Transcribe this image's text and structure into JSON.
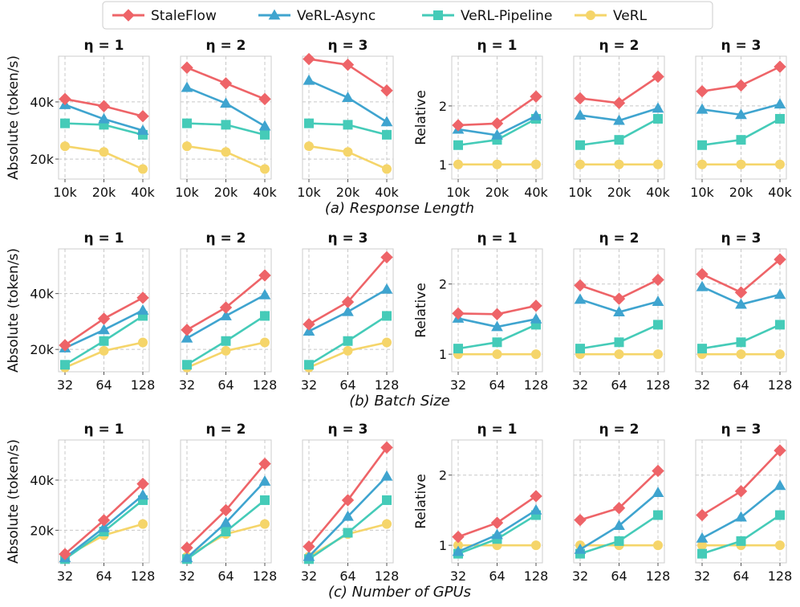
{
  "legend": {
    "entries": [
      {
        "name": "StaleFlow",
        "color": "#ee6468",
        "marker": "diamond"
      },
      {
        "name": "VeRL-Async",
        "color": "#3fa4cf",
        "marker": "triangle"
      },
      {
        "name": "VeRL-Pipeline",
        "color": "#45cbb8",
        "marker": "square"
      },
      {
        "name": "VeRL",
        "color": "#f5d56a",
        "marker": "circle"
      }
    ]
  },
  "chart_data": [
    {
      "type": "line",
      "caption": "(a) Response Length",
      "categories": [
        "10k",
        "20k",
        "40k"
      ],
      "absolute": {
        "ylabel": "Absolute (token/s)",
        "yticks": [
          {
            "v": 20000,
            "label": "20k"
          },
          {
            "v": 40000,
            "label": "40k"
          }
        ],
        "ylim": [
          13000,
          56000
        ],
        "panels": [
          {
            "title": "η = 1",
            "series": [
              {
                "name": "StaleFlow",
                "values": [
                  41000,
                  38500,
                  35000
                ]
              },
              {
                "name": "VeRL-Async",
                "values": [
                  39000,
                  34000,
                  30000
                ]
              },
              {
                "name": "VeRL-Pipeline",
                "values": [
                  32500,
                  32000,
                  28500
                ]
              },
              {
                "name": "VeRL",
                "values": [
                  24500,
                  22500,
                  16500
                ]
              }
            ]
          },
          {
            "title": "η = 2",
            "series": [
              {
                "name": "StaleFlow",
                "values": [
                  52000,
                  46500,
                  41000
                ]
              },
              {
                "name": "VeRL-Async",
                "values": [
                  45000,
                  39500,
                  31500
                ]
              },
              {
                "name": "VeRL-Pipeline",
                "values": [
                  32500,
                  32000,
                  28500
                ]
              },
              {
                "name": "VeRL",
                "values": [
                  24500,
                  22500,
                  16500
                ]
              }
            ]
          },
          {
            "title": "η = 3",
            "series": [
              {
                "name": "StaleFlow",
                "values": [
                  55000,
                  53000,
                  44000
                ]
              },
              {
                "name": "VeRL-Async",
                "values": [
                  47500,
                  41500,
                  33000
                ]
              },
              {
                "name": "VeRL-Pipeline",
                "values": [
                  32500,
                  32000,
                  28500
                ]
              },
              {
                "name": "VeRL",
                "values": [
                  24500,
                  22500,
                  16500
                ]
              }
            ]
          }
        ]
      },
      "relative": {
        "ylabel": "Relative",
        "yticks": [
          {
            "v": 1,
            "label": "1"
          },
          {
            "v": 2,
            "label": "2"
          }
        ],
        "ylim": [
          0.75,
          2.85
        ],
        "panels": [
          {
            "title": "η = 1",
            "series": [
              {
                "name": "StaleFlow",
                "values": [
                  1.67,
                  1.7,
                  2.16
                ]
              },
              {
                "name": "VeRL-Async",
                "values": [
                  1.6,
                  1.5,
                  1.83
                ]
              },
              {
                "name": "VeRL-Pipeline",
                "values": [
                  1.33,
                  1.42,
                  1.78
                ]
              },
              {
                "name": "VeRL",
                "values": [
                  1.0,
                  1.0,
                  1.0
                ]
              }
            ]
          },
          {
            "title": "η = 2",
            "series": [
              {
                "name": "StaleFlow",
                "values": [
                  2.13,
                  2.05,
                  2.5
                ]
              },
              {
                "name": "VeRL-Async",
                "values": [
                  1.84,
                  1.75,
                  1.96
                ]
              },
              {
                "name": "VeRL-Pipeline",
                "values": [
                  1.33,
                  1.42,
                  1.78
                ]
              },
              {
                "name": "VeRL",
                "values": [
                  1.0,
                  1.0,
                  1.0
                ]
              }
            ]
          },
          {
            "title": "η = 3",
            "series": [
              {
                "name": "StaleFlow",
                "values": [
                  2.25,
                  2.35,
                  2.67
                ]
              },
              {
                "name": "VeRL-Async",
                "values": [
                  1.94,
                  1.85,
                  2.03
                ]
              },
              {
                "name": "VeRL-Pipeline",
                "values": [
                  1.33,
                  1.42,
                  1.78
                ]
              },
              {
                "name": "VeRL",
                "values": [
                  1.0,
                  1.0,
                  1.0
                ]
              }
            ]
          }
        ]
      }
    },
    {
      "type": "line",
      "caption": "(b) Batch Size",
      "categories": [
        "32",
        "64",
        "128"
      ],
      "absolute": {
        "ylabel": "Absolute (token/s)",
        "yticks": [
          {
            "v": 20000,
            "label": "20k"
          },
          {
            "v": 40000,
            "label": "40k"
          }
        ],
        "ylim": [
          12000,
          56000
        ],
        "panels": [
          {
            "title": "η = 1",
            "series": [
              {
                "name": "StaleFlow",
                "values": [
                  21500,
                  31000,
                  38500
                ]
              },
              {
                "name": "VeRL-Async",
                "values": [
                  20500,
                  27000,
                  34000
                ]
              },
              {
                "name": "VeRL-Pipeline",
                "values": [
                  14500,
                  23000,
                  32000
                ]
              },
              {
                "name": "VeRL",
                "values": [
                  13500,
                  19500,
                  22500
                ]
              }
            ]
          },
          {
            "title": "η = 2",
            "series": [
              {
                "name": "StaleFlow",
                "values": [
                  27000,
                  35000,
                  46500
                ]
              },
              {
                "name": "VeRL-Async",
                "values": [
                  24000,
                  32000,
                  39500
                ]
              },
              {
                "name": "VeRL-Pipeline",
                "values": [
                  14500,
                  23000,
                  32000
                ]
              },
              {
                "name": "VeRL",
                "values": [
                  13500,
                  19500,
                  22500
                ]
              }
            ]
          },
          {
            "title": "η = 3",
            "series": [
              {
                "name": "StaleFlow",
                "values": [
                  29000,
                  37000,
                  53000
                ]
              },
              {
                "name": "VeRL-Async",
                "values": [
                  26500,
                  33500,
                  41500
                ]
              },
              {
                "name": "VeRL-Pipeline",
                "values": [
                  14500,
                  23000,
                  32000
                ]
              },
              {
                "name": "VeRL",
                "values": [
                  13500,
                  19500,
                  22500
                ]
              }
            ]
          }
        ]
      },
      "relative": {
        "ylabel": "Relative",
        "yticks": [
          {
            "v": 1,
            "label": "1"
          },
          {
            "v": 2,
            "label": "2"
          }
        ],
        "ylim": [
          0.75,
          2.5
        ],
        "panels": [
          {
            "title": "η = 1",
            "series": [
              {
                "name": "StaleFlow",
                "values": [
                  1.58,
                  1.57,
                  1.69
                ]
              },
              {
                "name": "VeRL-Async",
                "values": [
                  1.51,
                  1.39,
                  1.5
                ]
              },
              {
                "name": "VeRL-Pipeline",
                "values": [
                  1.08,
                  1.17,
                  1.42
                ]
              },
              {
                "name": "VeRL",
                "values": [
                  1.0,
                  1.0,
                  1.0
                ]
              }
            ]
          },
          {
            "title": "η = 2",
            "series": [
              {
                "name": "StaleFlow",
                "values": [
                  1.98,
                  1.79,
                  2.06
                ]
              },
              {
                "name": "VeRL-Async",
                "values": [
                  1.78,
                  1.6,
                  1.75
                ]
              },
              {
                "name": "VeRL-Pipeline",
                "values": [
                  1.08,
                  1.17,
                  1.42
                ]
              },
              {
                "name": "VeRL",
                "values": [
                  1.0,
                  1.0,
                  1.0
                ]
              }
            ]
          },
          {
            "title": "η = 3",
            "series": [
              {
                "name": "StaleFlow",
                "values": [
                  2.14,
                  1.88,
                  2.35
                ]
              },
              {
                "name": "VeRL-Async",
                "values": [
                  1.96,
                  1.71,
                  1.85
                ]
              },
              {
                "name": "VeRL-Pipeline",
                "values": [
                  1.08,
                  1.17,
                  1.42
                ]
              },
              {
                "name": "VeRL",
                "values": [
                  1.0,
                  1.0,
                  1.0
                ]
              }
            ]
          }
        ]
      }
    },
    {
      "type": "line",
      "caption": "(c) Number of GPUs",
      "categories": [
        "32",
        "64",
        "128"
      ],
      "absolute": {
        "ylabel": "Absolute (token/s)",
        "yticks": [
          {
            "v": 20000,
            "label": "20k"
          },
          {
            "v": 40000,
            "label": "40k"
          }
        ],
        "ylim": [
          7000,
          56000
        ],
        "panels": [
          {
            "title": "η = 1",
            "series": [
              {
                "name": "StaleFlow",
                "values": [
                  10500,
                  24000,
                  38500
                ]
              },
              {
                "name": "VeRL-Async",
                "values": [
                  9000,
                  21000,
                  34000
                ]
              },
              {
                "name": "VeRL-Pipeline",
                "values": [
                  8500,
                  19500,
                  32000
                ]
              },
              {
                "name": "VeRL",
                "values": [
                  9500,
                  18000,
                  22500
                ]
              }
            ]
          },
          {
            "title": "η = 2",
            "series": [
              {
                "name": "StaleFlow",
                "values": [
                  13000,
                  28000,
                  46500
                ]
              },
              {
                "name": "VeRL-Async",
                "values": [
                  9000,
                  23000,
                  39500
                ]
              },
              {
                "name": "VeRL-Pipeline",
                "values": [
                  8500,
                  19500,
                  32000
                ]
              },
              {
                "name": "VeRL",
                "values": [
                  9500,
                  18500,
                  22500
                ]
              }
            ]
          },
          {
            "title": "η = 3",
            "series": [
              {
                "name": "StaleFlow",
                "values": [
                  13500,
                  32000,
                  53000
                ]
              },
              {
                "name": "VeRL-Async",
                "values": [
                  9500,
                  25500,
                  41500
                ]
              },
              {
                "name": "VeRL-Pipeline",
                "values": [
                  8500,
                  19000,
                  32000
                ]
              },
              {
                "name": "VeRL",
                "values": [
                  9500,
                  18500,
                  22500
                ]
              }
            ]
          }
        ]
      },
      "relative": {
        "ylabel": "Relative",
        "yticks": [
          {
            "v": 1,
            "label": "1"
          },
          {
            "v": 2,
            "label": "2"
          }
        ],
        "ylim": [
          0.75,
          2.5
        ],
        "panels": [
          {
            "title": "η = 1",
            "series": [
              {
                "name": "StaleFlow",
                "values": [
                  1.12,
                  1.32,
                  1.7
                ]
              },
              {
                "name": "VeRL-Async",
                "values": [
                  0.91,
                  1.15,
                  1.5
                ]
              },
              {
                "name": "VeRL-Pipeline",
                "values": [
                  0.88,
                  1.09,
                  1.43
                ]
              },
              {
                "name": "VeRL",
                "values": [
                  1.0,
                  1.0,
                  1.0
                ]
              }
            ]
          },
          {
            "title": "η = 2",
            "series": [
              {
                "name": "StaleFlow",
                "values": [
                  1.36,
                  1.53,
                  2.06
                ]
              },
              {
                "name": "VeRL-Async",
                "values": [
                  0.94,
                  1.28,
                  1.75
                ]
              },
              {
                "name": "VeRL-Pipeline",
                "values": [
                  0.88,
                  1.06,
                  1.43
                ]
              },
              {
                "name": "VeRL",
                "values": [
                  1.0,
                  1.0,
                  1.0
                ]
              }
            ]
          },
          {
            "title": "η = 3",
            "series": [
              {
                "name": "StaleFlow",
                "values": [
                  1.43,
                  1.77,
                  2.35
                ]
              },
              {
                "name": "VeRL-Async",
                "values": [
                  1.1,
                  1.4,
                  1.85
                ]
              },
              {
                "name": "VeRL-Pipeline",
                "values": [
                  0.88,
                  1.06,
                  1.43
                ]
              },
              {
                "name": "VeRL",
                "values": [
                  1.0,
                  1.0,
                  1.0
                ]
              }
            ]
          }
        ]
      }
    }
  ]
}
